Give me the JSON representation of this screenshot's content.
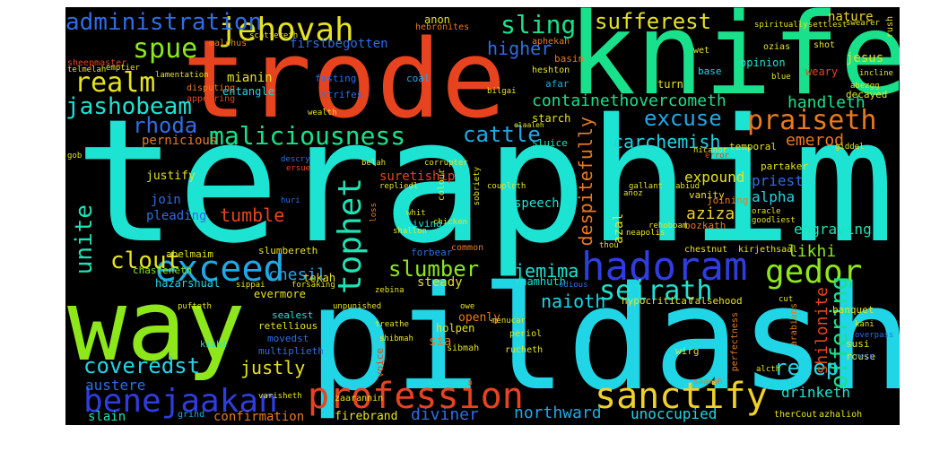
{
  "colors": {
    "background": "#000000",
    "page": "#ffffff"
  },
  "words": [
    {
      "text": "teraphim",
      "color": "#1de3d3"
    },
    {
      "text": "pildash",
      "color": "#20d5e6"
    },
    {
      "text": "trode",
      "color": "#e8431f"
    },
    {
      "text": "knife",
      "color": "#19e08a"
    },
    {
      "text": "way",
      "color": "#8de71a"
    },
    {
      "text": "profession",
      "color": "#e8431f"
    },
    {
      "text": "sanctify",
      "color": "#f0d12a"
    },
    {
      "text": "hadoram",
      "color": "#2f3de0"
    },
    {
      "text": "benejaakan",
      "color": "#2f3de0"
    },
    {
      "text": "exceed",
      "color": "#20a9e6"
    },
    {
      "text": "jehovah",
      "color": "#e5e220"
    },
    {
      "text": "tophet",
      "color": "#1de3b4"
    },
    {
      "text": "gedor",
      "color": "#8de71a"
    },
    {
      "text": "praiseth",
      "color": "#e87a1f"
    },
    {
      "text": "maliciousness",
      "color": "#19e08a"
    },
    {
      "text": "administration",
      "color": "#2f6de6"
    },
    {
      "text": "realm",
      "color": "#e5e220"
    },
    {
      "text": "seirath",
      "color": "#1de3d3"
    },
    {
      "text": "offering",
      "color": "#19e08a"
    },
    {
      "text": "rezeph",
      "color": "#20d5e6"
    },
    {
      "text": "jashobeam",
      "color": "#1de3d3"
    },
    {
      "text": "excuse",
      "color": "#20a9e6"
    },
    {
      "text": "containethovercometh",
      "color": "#19e08a"
    },
    {
      "text": "slumber",
      "color": "#8de71a"
    },
    {
      "text": "coveredst",
      "color": "#20d5e6"
    },
    {
      "text": "spue",
      "color": "#8de71a"
    },
    {
      "text": "sling",
      "color": "#19e08a"
    },
    {
      "text": "sufferest",
      "color": "#e5e220"
    },
    {
      "text": "rhoda",
      "color": "#2f6de6"
    },
    {
      "text": "cattle",
      "color": "#20a9e6"
    },
    {
      "text": "carchemish",
      "color": "#20d5e6"
    },
    {
      "text": "unite",
      "color": "#1de3b4"
    },
    {
      "text": "clout",
      "color": "#e5e220"
    },
    {
      "text": "despitefully",
      "color": "#e87a1f"
    },
    {
      "text": "tumble",
      "color": "#e8431f"
    },
    {
      "text": "jemima",
      "color": "#1de3d3"
    },
    {
      "text": "naioth",
      "color": "#20d5e6"
    },
    {
      "text": "justly",
      "color": "#e5e220"
    },
    {
      "text": "chesil",
      "color": "#20a9e6"
    },
    {
      "text": "higher",
      "color": "#2f6de6"
    },
    {
      "text": "handleth",
      "color": "#19e08a"
    },
    {
      "text": "emerod",
      "color": "#e87a1f"
    },
    {
      "text": "likhi",
      "color": "#8de71a"
    },
    {
      "text": "shilonite",
      "color": "#e8431f"
    },
    {
      "text": "drinketh",
      "color": "#1de3d3"
    },
    {
      "text": "northward",
      "color": "#20a9e6"
    },
    {
      "text": "diviner",
      "color": "#2f6de6"
    },
    {
      "text": "unoccupied",
      "color": "#20d5e6"
    },
    {
      "text": "confirmation",
      "color": "#e87a1f"
    },
    {
      "text": "firebrand",
      "color": "#e5e220"
    },
    {
      "text": "slain",
      "color": "#1de3b4"
    },
    {
      "text": "austere",
      "color": "#2f6de6"
    },
    {
      "text": "engraving",
      "color": "#1de3b4"
    },
    {
      "text": "aziza",
      "color": "#f0d12a"
    },
    {
      "text": "expound",
      "color": "#e5e220"
    },
    {
      "text": "priest",
      "color": "#2f6de6"
    },
    {
      "text": "alpha",
      "color": "#20d5e6"
    },
    {
      "text": "pernicious",
      "color": "#e87a1f"
    },
    {
      "text": "justify",
      "color": "#e5e220"
    },
    {
      "text": "join",
      "color": "#2f6de6"
    },
    {
      "text": "pleading",
      "color": "#2f6de6"
    },
    {
      "text": "suretiship",
      "color": "#e8431f"
    },
    {
      "text": "speech",
      "color": "#1de3d3"
    },
    {
      "text": "evermore",
      "color": "#e5e220"
    },
    {
      "text": "hazarshual",
      "color": "#20d5e6"
    },
    {
      "text": "chasteneth",
      "color": "#8de71a"
    },
    {
      "text": "shamhuth",
      "color": "#1de3d3"
    },
    {
      "text": "steady",
      "color": "#e5e220"
    },
    {
      "text": "openly",
      "color": "#e87a1f"
    },
    {
      "text": "holpen",
      "color": "#e5e220"
    },
    {
      "text": "sia",
      "color": "#e87a1f"
    },
    {
      "text": "mianin",
      "color": "#e5e220"
    },
    {
      "text": "entangle",
      "color": "#20d5e6"
    },
    {
      "text": "firstbegotten",
      "color": "#2f6de6"
    },
    {
      "text": "nature",
      "color": "#f0d12a"
    },
    {
      "text": "opinion",
      "color": "#1de3d3"
    },
    {
      "text": "turn",
      "color": "#e5e220"
    },
    {
      "text": "afar",
      "color": "#20a9e6"
    },
    {
      "text": "coal",
      "color": "#20a9e6"
    },
    {
      "text": "anon",
      "color": "#e5e220"
    },
    {
      "text": "sluice",
      "color": "#1de3b4"
    },
    {
      "text": "starch",
      "color": "#e5e220"
    },
    {
      "text": "decayed",
      "color": "#e5e220"
    },
    {
      "text": "jesus",
      "color": "#e5e220"
    },
    {
      "text": "weary",
      "color": "#e8431f"
    },
    {
      "text": "base",
      "color": "#20d5e6"
    },
    {
      "text": "fasting",
      "color": "#2f6de6"
    },
    {
      "text": "temporal",
      "color": "#e5e220"
    },
    {
      "text": "vanity",
      "color": "#e5e220"
    },
    {
      "text": "joining",
      "color": "#e87a1f"
    },
    {
      "text": "bozkath",
      "color": "#e87a1f"
    },
    {
      "text": "slumbereth",
      "color": "#e5e220"
    },
    {
      "text": "abelmaim",
      "color": "#e5e220"
    },
    {
      "text": "forbear",
      "color": "#2f6de6"
    },
    {
      "text": "living",
      "color": "#1de3d3"
    },
    {
      "text": "chestnut",
      "color": "#e5e220"
    },
    {
      "text": "kirjethsaal",
      "color": "#e5e220"
    },
    {
      "text": "hebronites",
      "color": "#e87a1f"
    },
    {
      "text": "malchus",
      "color": "#e87a1f"
    },
    {
      "text": "sheepmaster",
      "color": "#e8431f"
    },
    {
      "text": "disputing",
      "color": "#e87a1f"
    },
    {
      "text": "appearing",
      "color": "#e8431f"
    },
    {
      "text": "partaker",
      "color": "#e5e220"
    },
    {
      "text": "banquet",
      "color": "#e5e220"
    },
    {
      "text": "rouse",
      "color": "#e5e220"
    },
    {
      "text": "susi",
      "color": "#e5e220"
    },
    {
      "text": "wirg",
      "color": "#e5e220"
    },
    {
      "text": "sealest",
      "color": "#1de3d3"
    },
    {
      "text": "retellious",
      "color": "#e5e220"
    },
    {
      "text": "movedst",
      "color": "#2f6de6"
    },
    {
      "text": "multiplieth",
      "color": "#2f6de6"
    },
    {
      "text": "kishi",
      "color": "#1de3d3"
    },
    {
      "text": "extreme",
      "color": "#1de3d3"
    },
    {
      "text": "voice",
      "color": "#e8431f"
    },
    {
      "text": "bath",
      "color": "#20d5e6"
    },
    {
      "text": "hypocritical",
      "color": "#e5e220"
    },
    {
      "text": "falsehood",
      "color": "#e5e220"
    },
    {
      "text": "perfectness",
      "color": "#e87a1f"
    },
    {
      "text": "arabians",
      "color": "#e87a1f"
    },
    {
      "text": "sibmah",
      "color": "#e5e220"
    },
    {
      "text": "rucheth",
      "color": "#e5e220"
    },
    {
      "text": "periol",
      "color": "#e5e220"
    },
    {
      "text": "zaarannin",
      "color": "#e5e220"
    },
    {
      "text": "therCout",
      "color": "#e5e220"
    },
    {
      "text": "azhalioh",
      "color": "#e5e220"
    },
    {
      "text": "grind",
      "color": "#20a9e6"
    },
    {
      "text": "common",
      "color": "#e87a1f"
    },
    {
      "text": "aphekah",
      "color": "#e87a1f"
    },
    {
      "text": "heshton",
      "color": "#e5e220"
    },
    {
      "text": "basin",
      "color": "#e87a1f"
    },
    {
      "text": "ozias",
      "color": "#e5e220"
    },
    {
      "text": "shot",
      "color": "#e5e220"
    },
    {
      "text": "wet",
      "color": "#e5e220"
    },
    {
      "text": "blue",
      "color": "#e5e220"
    },
    {
      "text": "spiritually",
      "color": "#e5e220"
    },
    {
      "text": "settlest",
      "color": "#e5e220"
    },
    {
      "text": "swearer",
      "color": "#e5e220"
    },
    {
      "text": "rush",
      "color": "#e5e220"
    },
    {
      "text": "nicanor",
      "color": "#e5e220"
    },
    {
      "text": "error",
      "color": "#e8431f"
    },
    {
      "text": "gallant",
      "color": "#e5e220"
    },
    {
      "text": "neapolis",
      "color": "#e5e220"
    },
    {
      "text": "oracle",
      "color": "#e5e220"
    },
    {
      "text": "goodliest",
      "color": "#e5e220"
    },
    {
      "text": "sippai",
      "color": "#e5e220"
    },
    {
      "text": "tekah",
      "color": "#e5e220"
    },
    {
      "text": "forsaking",
      "color": "#e5e220"
    },
    {
      "text": "huri",
      "color": "#2f6de6"
    },
    {
      "text": "descry",
      "color": "#2f6de6"
    },
    {
      "text": "ersue",
      "color": "#e8431f"
    },
    {
      "text": "scattereth",
      "color": "#e5e220"
    },
    {
      "text": "lamentation",
      "color": "#e5e220"
    },
    {
      "text": "carshena",
      "color": "#e5e220"
    },
    {
      "text": "emptier",
      "color": "#e5e220"
    },
    {
      "text": "telmelah",
      "color": "#e5e220"
    },
    {
      "text": "gob",
      "color": "#e5e220"
    },
    {
      "text": "wealth",
      "color": "#e5e220"
    },
    {
      "text": "bilgai",
      "color": "#e5e220"
    },
    {
      "text": "giddel",
      "color": "#e5e220"
    },
    {
      "text": "unpunished",
      "color": "#e5e220"
    },
    {
      "text": "shibmah",
      "color": "#e5e220"
    },
    {
      "text": "treathe",
      "color": "#e5e220"
    },
    {
      "text": "menucar",
      "color": "#e5e220"
    },
    {
      "text": "cut",
      "color": "#e5e220"
    },
    {
      "text": "pufteth",
      "color": "#e5e220"
    },
    {
      "text": "kani",
      "color": "#e5e220"
    },
    {
      "text": "overpass",
      "color": "#2f6de6"
    },
    {
      "text": "rein",
      "color": "#2f6de6"
    },
    {
      "text": "alcth",
      "color": "#e5e220"
    },
    {
      "text": "saamah",
      "color": "#e87a1f"
    },
    {
      "text": "varisheth",
      "color": "#e5e220"
    },
    {
      "text": "abezgg",
      "color": "#e5e220"
    },
    {
      "text": "incline",
      "color": "#e5e220"
    },
    {
      "text": "elaaleh",
      "color": "#e5e220"
    },
    {
      "text": "couplcth",
      "color": "#e5e220"
    },
    {
      "text": "repliedl",
      "color": "#e5e220"
    },
    {
      "text": "corrupter",
      "color": "#e5e220"
    },
    {
      "text": "belah",
      "color": "#e5e220"
    },
    {
      "text": "whit",
      "color": "#e5e220"
    },
    {
      "text": "chicken",
      "color": "#e5e220"
    },
    {
      "text": "rehoboam",
      "color": "#e5e220"
    },
    {
      "text": "anoz",
      "color": "#e5e220"
    },
    {
      "text": "abiud",
      "color": "#e5e220"
    },
    {
      "text": "shallon",
      "color": "#e5e220"
    },
    {
      "text": "owe",
      "color": "#e5e220"
    },
    {
      "text": "zebina",
      "color": "#e5e220"
    },
    {
      "text": "odious",
      "color": "#2f6de6"
    },
    {
      "text": "azal",
      "color": "#e5e220"
    },
    {
      "text": "thou",
      "color": "#e5e220"
    },
    {
      "text": "colour",
      "color": "#e5e220"
    },
    {
      "text": "loss",
      "color": "#e87a1f"
    },
    {
      "text": "sobriety",
      "color": "#e5e220"
    },
    {
      "text": "strifes",
      "color": "#2f6de6"
    },
    {
      "text": "soupim",
      "color": "#e5e220"
    }
  ]
}
